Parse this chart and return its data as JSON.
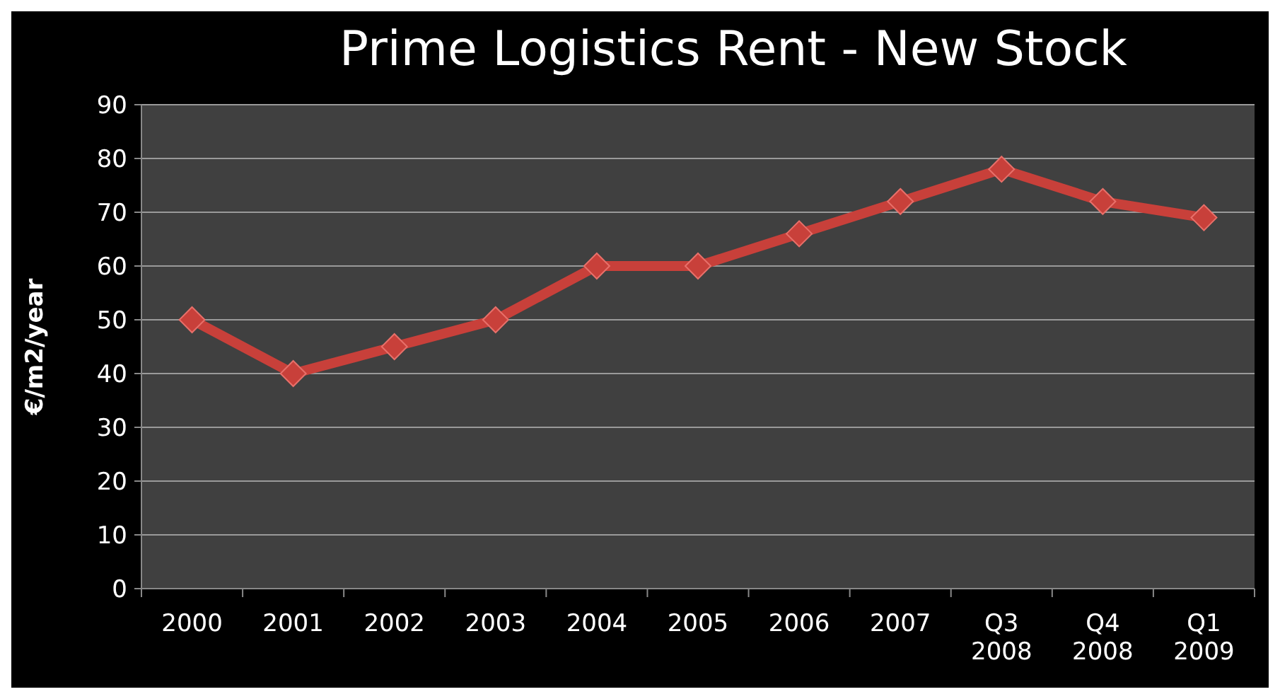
{
  "chart_data": {
    "type": "line",
    "title": "Prime Logistics Rent - New Stock",
    "ylabel": "€/m2/year",
    "categories": [
      "2000",
      "2001",
      "2002",
      "2003",
      "2004",
      "2005",
      "2006",
      "2007",
      "Q3 2008",
      "Q4 2008",
      "Q1 2009"
    ],
    "series": [
      {
        "color": "#c8403a",
        "values": [
          50,
          40,
          45,
          50,
          60,
          60,
          66,
          72,
          78,
          72,
          69
        ]
      }
    ],
    "ylim": [
      0,
      90
    ],
    "yticks": [
      0,
      10,
      20,
      30,
      40,
      50,
      60,
      70,
      80,
      90
    ],
    "grid": "y",
    "marker": "diamond",
    "line_style": "solid"
  }
}
